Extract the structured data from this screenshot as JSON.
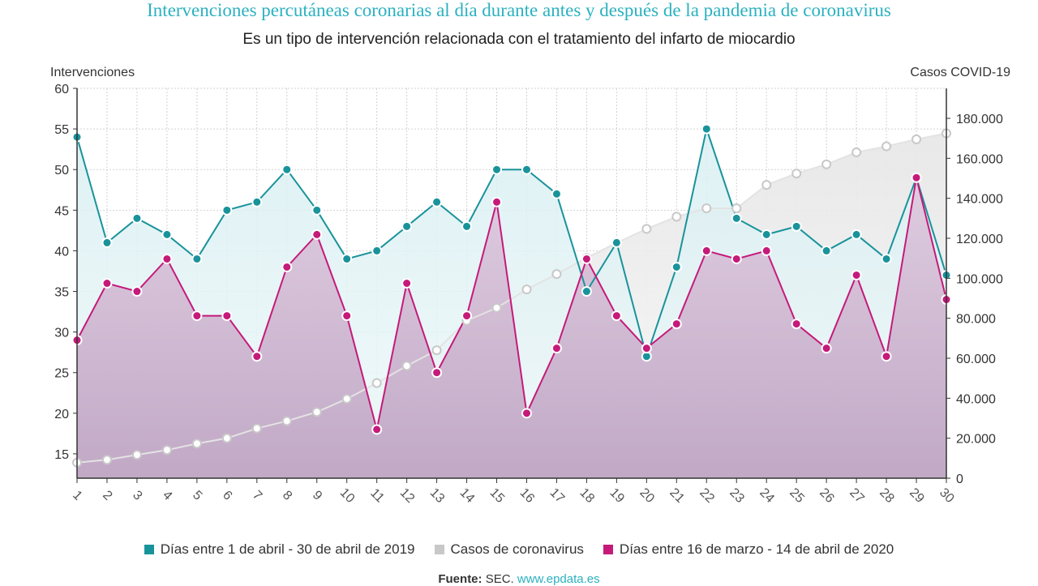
{
  "title": "Intervenciones percutáneas coronarias al día durante antes y después de la pandemia de coronavirus",
  "subtitle": "Es un tipo de intervención relacionada con el tratamiento del infarto de miocardio",
  "source": {
    "label": "Fuente:",
    "text": "SEC.",
    "link": "www.epdata.es"
  },
  "colors": {
    "series_2019": "#19939b",
    "covid": "#c8c8c8",
    "series_2020": "#c51a7a"
  },
  "chart_data": {
    "type": "line",
    "x": [
      1,
      2,
      3,
      4,
      5,
      6,
      7,
      8,
      9,
      10,
      11,
      12,
      13,
      14,
      15,
      16,
      17,
      18,
      19,
      20,
      21,
      22,
      23,
      24,
      25,
      26,
      27,
      28,
      29,
      30
    ],
    "xlabels": [
      "1",
      "2",
      "3",
      "4",
      "5",
      "6",
      "7",
      "8",
      "9",
      "10",
      "11",
      "12",
      "13",
      "14",
      "15",
      "16",
      "17",
      "18",
      "19",
      "20",
      "21",
      "22",
      "23",
      "24",
      "25",
      "26",
      "27",
      "28",
      "29",
      "30"
    ],
    "ylabel_left": "Intervenciones",
    "ylabel_right": "Casos COVID-19",
    "ylim_left": [
      12,
      60
    ],
    "yticks_left": [
      15,
      20,
      25,
      30,
      35,
      40,
      45,
      50,
      55,
      60
    ],
    "ylim_right": [
      0,
      195000
    ],
    "yticks_right": [
      0,
      20000,
      40000,
      60000,
      80000,
      100000,
      120000,
      140000,
      160000,
      180000
    ],
    "yticklabels_right": [
      "0",
      "20.000",
      "40.000",
      "60.000",
      "80.000",
      "100.000",
      "120.000",
      "140.000",
      "160.000",
      "180.000"
    ],
    "grid": true,
    "legend_position": "bottom",
    "series": [
      {
        "name": "Días entre 1 de abril - 30 de abril de 2019",
        "axis": "left",
        "values": [
          54,
          41,
          44,
          42,
          39,
          45,
          46,
          50,
          45,
          39,
          40,
          43,
          46,
          43,
          50,
          50,
          47,
          35,
          41,
          27,
          38,
          55,
          44,
          42,
          43,
          40,
          42,
          39,
          49,
          37
        ]
      },
      {
        "name": "Casos de coronavirus",
        "axis": "right",
        "values": [
          7800,
          9200,
          11700,
          14100,
          17300,
          20000,
          24900,
          28600,
          33100,
          39700,
          47600,
          56200,
          64000,
          78800,
          85200,
          94400,
          102100,
          110200,
          117700,
          124700,
          130800,
          135000,
          135000,
          146700,
          152400,
          157000,
          163000,
          166000,
          169500,
          172500
        ]
      },
      {
        "name": "Días entre 16 de marzo - 14 de abril de 2020",
        "axis": "left",
        "values": [
          29,
          36,
          35,
          39,
          32,
          32,
          27,
          38,
          42,
          32,
          18,
          36,
          25,
          32,
          46,
          20,
          28,
          39,
          32,
          28,
          31,
          40,
          39,
          40,
          31,
          28,
          37,
          27,
          49,
          34
        ]
      }
    ]
  }
}
